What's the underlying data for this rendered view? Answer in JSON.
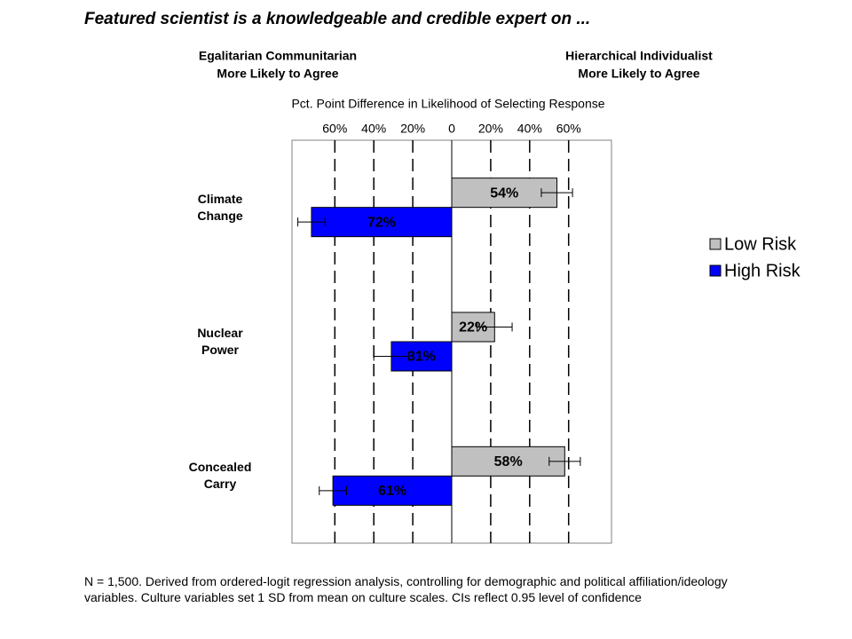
{
  "chart_data": {
    "type": "bar",
    "orientation": "horizontal",
    "title": "Featured scientist is a knowledgeable and credible expert on ...",
    "left_label": [
      "Egalitarian Communitarian",
      "More Likely to Agree"
    ],
    "right_label": [
      "Hierarchical Individualist",
      "More Likely to Agree"
    ],
    "xlabel": "Pct. Point Difference in Likelihood of Selecting Response",
    "categories": [
      "Climate Change",
      "Nuclear Power",
      "Concealed Carry"
    ],
    "series": [
      {
        "name": "Low Risk",
        "color": "#c0c0c0",
        "values": [
          54,
          22,
          58
        ],
        "value_labels": [
          "54%",
          "22%",
          "58%"
        ],
        "errors": [
          8,
          9,
          8
        ]
      },
      {
        "name": "High Risk",
        "color": "#0000ff",
        "values": [
          -72,
          -31,
          -61
        ],
        "value_labels": [
          "72%",
          "31%",
          "61%"
        ],
        "errors": [
          7,
          9,
          7
        ]
      }
    ],
    "xlim": [
      -82,
      82
    ],
    "xticks": [
      {
        "value": -60,
        "label": "60%"
      },
      {
        "value": -40,
        "label": "40%"
      },
      {
        "value": -20,
        "label": "20%"
      },
      0,
      {
        "value": 20,
        "label": "20%"
      },
      {
        "value": 40,
        "label": "40%"
      },
      {
        "value": 60,
        "label": "60%"
      }
    ],
    "grid": true,
    "legend": "right",
    "note": "N = 1,500. Derived from ordered-logit regression analysis, controlling for demographic and political affiliation/ideology variables. Culture variables set 1 SD from mean on culture scales. CIs reflect 0.95 level of confidence"
  }
}
